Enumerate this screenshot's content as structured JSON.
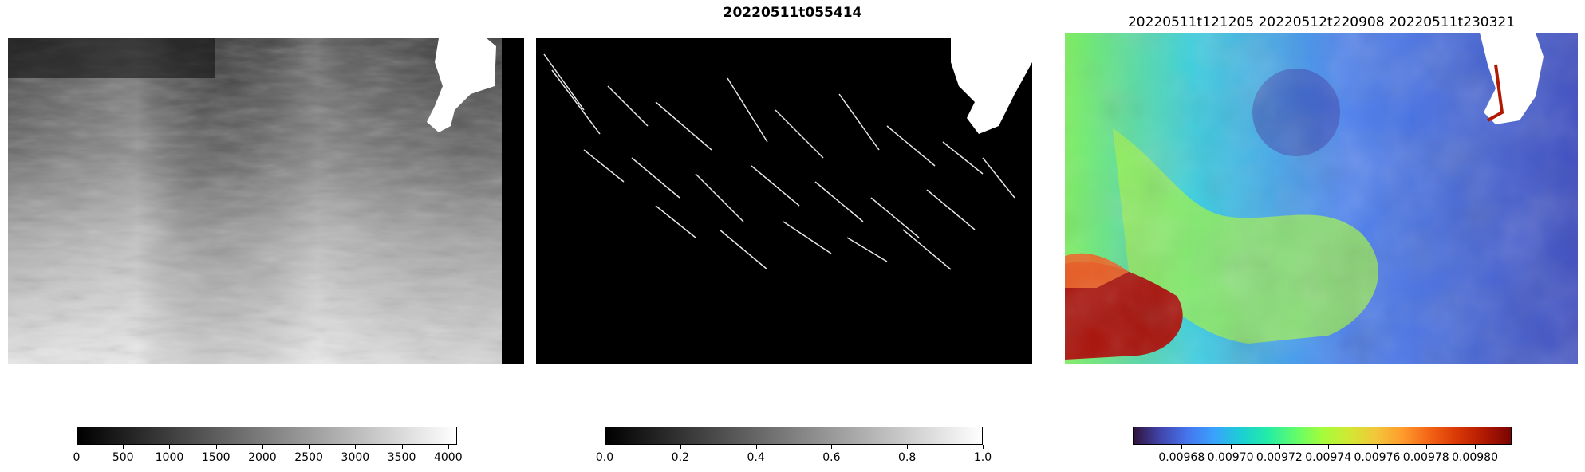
{
  "figure": {
    "suptitle": "20220511t055414",
    "panels": [
      {
        "name": "raw-intensity",
        "title": "",
        "colormap": "gray"
      },
      {
        "name": "binary-mask",
        "title": "",
        "colormap": "gray"
      },
      {
        "name": "chlorophyll-turbo",
        "title": "20220511t121205 20220512t220908 20220511t230321",
        "colormap": "turbo"
      }
    ],
    "colorbars": [
      {
        "name": "colorbar-gray-intensity",
        "colormap": "gray",
        "min": 0,
        "max": 4096,
        "ticks": [
          "0",
          "500",
          "1000",
          "1500",
          "2000",
          "2500",
          "3000",
          "3500",
          "4000"
        ],
        "tick_values": [
          0,
          500,
          1000,
          1500,
          2000,
          2500,
          3000,
          3500,
          4000
        ]
      },
      {
        "name": "colorbar-binary",
        "colormap": "gray",
        "min": 0,
        "max": 1,
        "ticks": [
          "0.0",
          "0.2",
          "0.4",
          "0.6",
          "0.8",
          "1.0"
        ],
        "tick_values": [
          0,
          0.2,
          0.4,
          0.6,
          0.8,
          1.0
        ]
      },
      {
        "name": "colorbar-turbo",
        "colormap": "turbo",
        "min": 0.00966,
        "max": 0.009815,
        "ticks": [
          "0.00968",
          "0.00970",
          "0.00972",
          "0.00974",
          "0.00976",
          "0.00978",
          "0.00980"
        ],
        "tick_values": [
          0.00968,
          0.0097,
          0.00972,
          0.00974,
          0.00976,
          0.00978,
          0.0098
        ]
      }
    ],
    "colors": {
      "turbo_stops": [
        "#30123b",
        "#4145ab",
        "#4675ed",
        "#39a2fc",
        "#1bcfd4",
        "#24eca6",
        "#61fc6c",
        "#a4fc3b",
        "#d1e834",
        "#f3c63a",
        "#fe9b2d",
        "#f36315",
        "#d93806",
        "#b11901",
        "#7a0402"
      ]
    }
  }
}
